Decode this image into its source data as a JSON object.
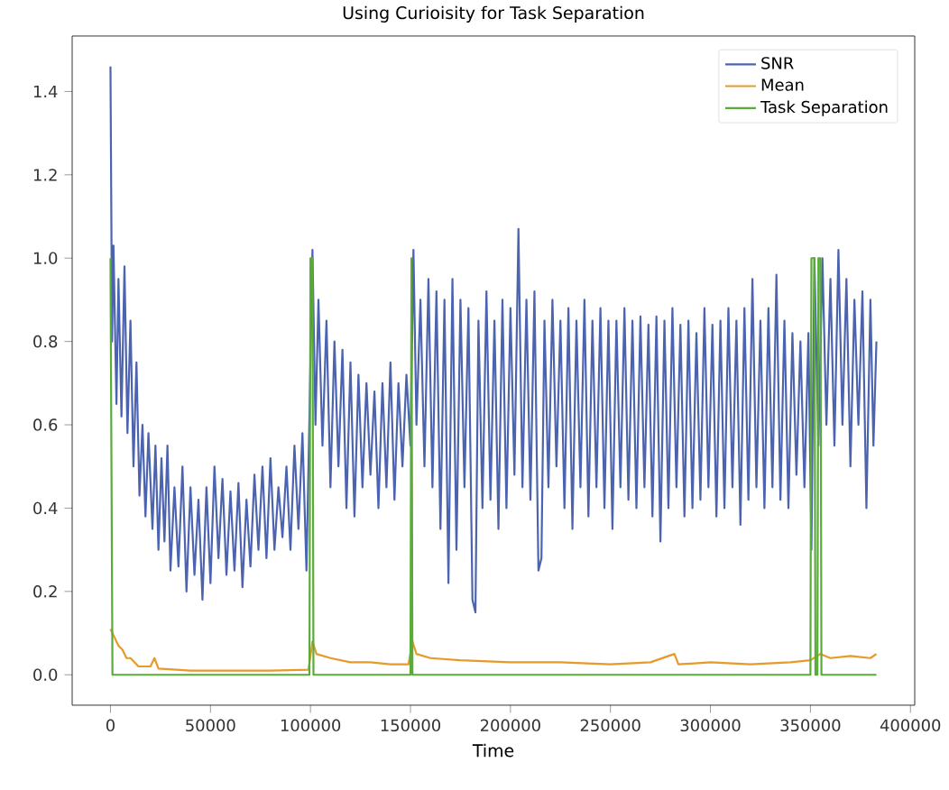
{
  "chart_data": {
    "type": "line",
    "title": "Using Curioisity for Task Separation",
    "xlabel": "Time",
    "legend": "top right",
    "grid": false,
    "marker": "none",
    "line_style": "solid",
    "xlim": [
      -19150,
      402150
    ],
    "ylim": [
      -0.073,
      1.533
    ],
    "xticks": [
      0,
      50000,
      100000,
      150000,
      200000,
      250000,
      300000,
      350000,
      400000
    ],
    "yticks": [
      {
        "value": 0,
        "label": "0.0"
      },
      {
        "value": 0.2,
        "label": "0.2"
      },
      {
        "value": 0.4,
        "label": "0.4"
      },
      {
        "value": 0.6,
        "label": "0.6"
      },
      {
        "value": 0.8,
        "label": "0.8"
      },
      {
        "value": 1.0,
        "label": "1.0"
      },
      {
        "value": 1.2,
        "label": "1.2"
      },
      {
        "value": 1.4,
        "label": "1.4"
      }
    ],
    "series": [
      {
        "name": "SNR",
        "color": "#4c64b0",
        "x": [
          0,
          800,
          1500,
          3000,
          4000,
          5500,
          7000,
          8500,
          10000,
          11500,
          13000,
          14500,
          16000,
          17500,
          19000,
          21000,
          22500,
          24000,
          25500,
          27000,
          28500,
          30000,
          32000,
          34000,
          36000,
          38000,
          40000,
          42000,
          44000,
          46000,
          48000,
          50000,
          52000,
          54000,
          56000,
          58000,
          60000,
          62000,
          64000,
          66000,
          68000,
          70000,
          72000,
          74000,
          76000,
          78000,
          80000,
          82000,
          84000,
          86000,
          88000,
          90000,
          92000,
          94000,
          96000,
          98000,
          99500,
          101000,
          102500,
          104000,
          106000,
          108000,
          110000,
          112000,
          114000,
          116000,
          118000,
          120000,
          122000,
          124000,
          126000,
          128000,
          130000,
          132000,
          134000,
          136000,
          138000,
          140000,
          142000,
          144000,
          146000,
          148000,
          150000,
          151500,
          153000,
          155000,
          157000,
          159000,
          161000,
          163000,
          165000,
          167000,
          169000,
          171000,
          173000,
          175000,
          177000,
          179000,
          181000,
          182500,
          184000,
          186000,
          188000,
          190000,
          192000,
          194000,
          196000,
          198000,
          200000,
          202000,
          204000,
          206000,
          208000,
          210000,
          212000,
          214000,
          215500,
          217000,
          219000,
          221000,
          223000,
          225000,
          227000,
          229000,
          231000,
          233000,
          235000,
          237000,
          239000,
          241000,
          243000,
          245000,
          247000,
          249000,
          251000,
          253000,
          255000,
          257000,
          259000,
          261000,
          263000,
          265000,
          267000,
          269000,
          271000,
          273000,
          275000,
          277000,
          279000,
          281000,
          283000,
          285000,
          287000,
          289000,
          291000,
          293000,
          295000,
          297000,
          299000,
          301000,
          303000,
          305000,
          307000,
          309000,
          311000,
          313000,
          315000,
          317000,
          319000,
          321000,
          323000,
          325000,
          327000,
          329000,
          331000,
          333000,
          335000,
          337000,
          339000,
          341000,
          343000,
          345000,
          347000,
          349000,
          350500,
          352000,
          354000,
          356000,
          358000,
          360000,
          362000,
          364000,
          366000,
          368000,
          370000,
          372000,
          374000,
          376000,
          378000,
          380000,
          381500,
          383000
        ],
        "values": [
          1.46,
          0.8,
          1.03,
          0.65,
          0.95,
          0.62,
          0.98,
          0.58,
          0.85,
          0.5,
          0.75,
          0.43,
          0.6,
          0.38,
          0.58,
          0.35,
          0.55,
          0.3,
          0.52,
          0.32,
          0.55,
          0.25,
          0.45,
          0.26,
          0.5,
          0.2,
          0.45,
          0.24,
          0.42,
          0.18,
          0.45,
          0.22,
          0.5,
          0.28,
          0.47,
          0.24,
          0.44,
          0.25,
          0.46,
          0.21,
          0.42,
          0.26,
          0.48,
          0.3,
          0.5,
          0.28,
          0.52,
          0.3,
          0.45,
          0.33,
          0.5,
          0.3,
          0.55,
          0.35,
          0.58,
          0.25,
          0.62,
          1.02,
          0.6,
          0.9,
          0.55,
          0.85,
          0.45,
          0.8,
          0.5,
          0.78,
          0.4,
          0.75,
          0.38,
          0.72,
          0.45,
          0.7,
          0.48,
          0.68,
          0.4,
          0.7,
          0.45,
          0.75,
          0.42,
          0.7,
          0.5,
          0.72,
          0.55,
          1.02,
          0.6,
          0.9,
          0.5,
          0.95,
          0.45,
          0.92,
          0.35,
          0.9,
          0.22,
          0.95,
          0.3,
          0.9,
          0.45,
          0.88,
          0.18,
          0.15,
          0.85,
          0.4,
          0.92,
          0.42,
          0.85,
          0.35,
          0.9,
          0.4,
          0.88,
          0.48,
          1.07,
          0.45,
          0.9,
          0.42,
          0.92,
          0.25,
          0.28,
          0.85,
          0.45,
          0.9,
          0.5,
          0.85,
          0.4,
          0.88,
          0.35,
          0.85,
          0.45,
          0.9,
          0.38,
          0.85,
          0.45,
          0.88,
          0.4,
          0.85,
          0.35,
          0.85,
          0.45,
          0.88,
          0.42,
          0.85,
          0.4,
          0.86,
          0.45,
          0.84,
          0.38,
          0.86,
          0.32,
          0.85,
          0.4,
          0.88,
          0.45,
          0.84,
          0.38,
          0.85,
          0.4,
          0.82,
          0.42,
          0.88,
          0.45,
          0.84,
          0.38,
          0.85,
          0.4,
          0.88,
          0.45,
          0.85,
          0.36,
          0.88,
          0.42,
          0.95,
          0.45,
          0.85,
          0.4,
          0.88,
          0.45,
          0.96,
          0.42,
          0.85,
          0.4,
          0.82,
          0.48,
          0.8,
          0.45,
          0.82,
          0.3,
          1.0,
          0.55,
          1.0,
          0.6,
          0.95,
          0.55,
          1.02,
          0.6,
          0.95,
          0.5,
          0.9,
          0.6,
          0.92,
          0.4,
          0.9,
          0.55,
          0.8
        ]
      },
      {
        "name": "Mean",
        "color": "#e69a2a",
        "x": [
          0,
          2000,
          4000,
          6000,
          8000,
          10000,
          14000,
          20000,
          22000,
          24000,
          40000,
          60000,
          80000,
          99000,
          101000,
          103000,
          110000,
          120000,
          130000,
          140000,
          149000,
          151000,
          153000,
          160000,
          175000,
          200000,
          225000,
          250000,
          270000,
          282000,
          284000,
          300000,
          320000,
          340000,
          350000,
          355000,
          360000,
          370000,
          380000,
          383000
        ],
        "values": [
          0.11,
          0.09,
          0.07,
          0.06,
          0.04,
          0.04,
          0.02,
          0.02,
          0.04,
          0.015,
          0.01,
          0.01,
          0.01,
          0.012,
          0.08,
          0.05,
          0.04,
          0.03,
          0.03,
          0.025,
          0.025,
          0.08,
          0.05,
          0.04,
          0.035,
          0.03,
          0.03,
          0.025,
          0.03,
          0.05,
          0.025,
          0.03,
          0.025,
          0.03,
          0.035,
          0.05,
          0.04,
          0.045,
          0.04,
          0.05
        ]
      },
      {
        "name": "Task Separation",
        "color": "#5aab3a",
        "x": [
          0,
          1000,
          99500,
          100000,
          101000,
          101500,
          150000,
          150500,
          151000,
          350000,
          350500,
          352000,
          352500,
          353500,
          354000,
          355000,
          355500,
          383000
        ],
        "values": [
          1.0,
          0,
          0,
          1.0,
          1.0,
          0,
          0,
          1.0,
          0,
          0,
          1.0,
          1.0,
          0,
          0,
          1.0,
          1.0,
          0,
          0
        ]
      }
    ]
  }
}
